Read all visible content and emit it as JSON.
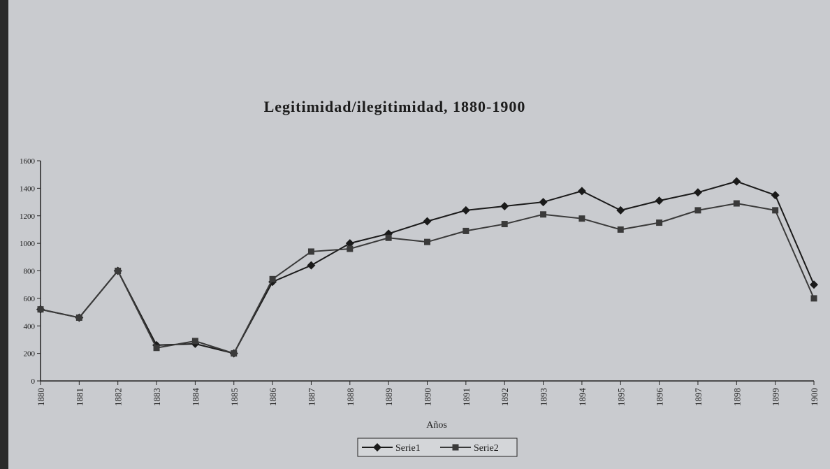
{
  "chart_data": {
    "type": "line",
    "title": "Legitimidad/ilegitimidad,  1880-1900",
    "x_label": "Años",
    "categories": [
      "1880",
      "1881",
      "1882",
      "1883",
      "1884",
      "1885",
      "1886",
      "1887",
      "1888",
      "1889",
      "1890",
      "1891",
      "1892",
      "1893",
      "1894",
      "1895",
      "1896",
      "1897",
      "1898",
      "1899",
      "1900"
    ],
    "series": [
      {
        "name": "Serie1",
        "color": "#1a1a1a",
        "marker": "diamond",
        "values": [
          520,
          460,
          800,
          260,
          270,
          200,
          720,
          840,
          1000,
          1070,
          1160,
          1240,
          1270,
          1300,
          1380,
          1240,
          1310,
          1370,
          1450,
          1350,
          700
        ]
      },
      {
        "name": "Serie2",
        "color": "#3a3a3a",
        "marker": "square",
        "values": [
          520,
          460,
          800,
          240,
          290,
          200,
          740,
          940,
          960,
          1040,
          1010,
          1090,
          1140,
          1210,
          1180,
          1100,
          1150,
          1240,
          1290,
          1240,
          600
        ]
      }
    ],
    "ylim": [
      0,
      1600
    ],
    "yticks": [
      0,
      200,
      400,
      600,
      800,
      1000,
      1200,
      1400,
      1600
    ],
    "legend": "bottom"
  }
}
